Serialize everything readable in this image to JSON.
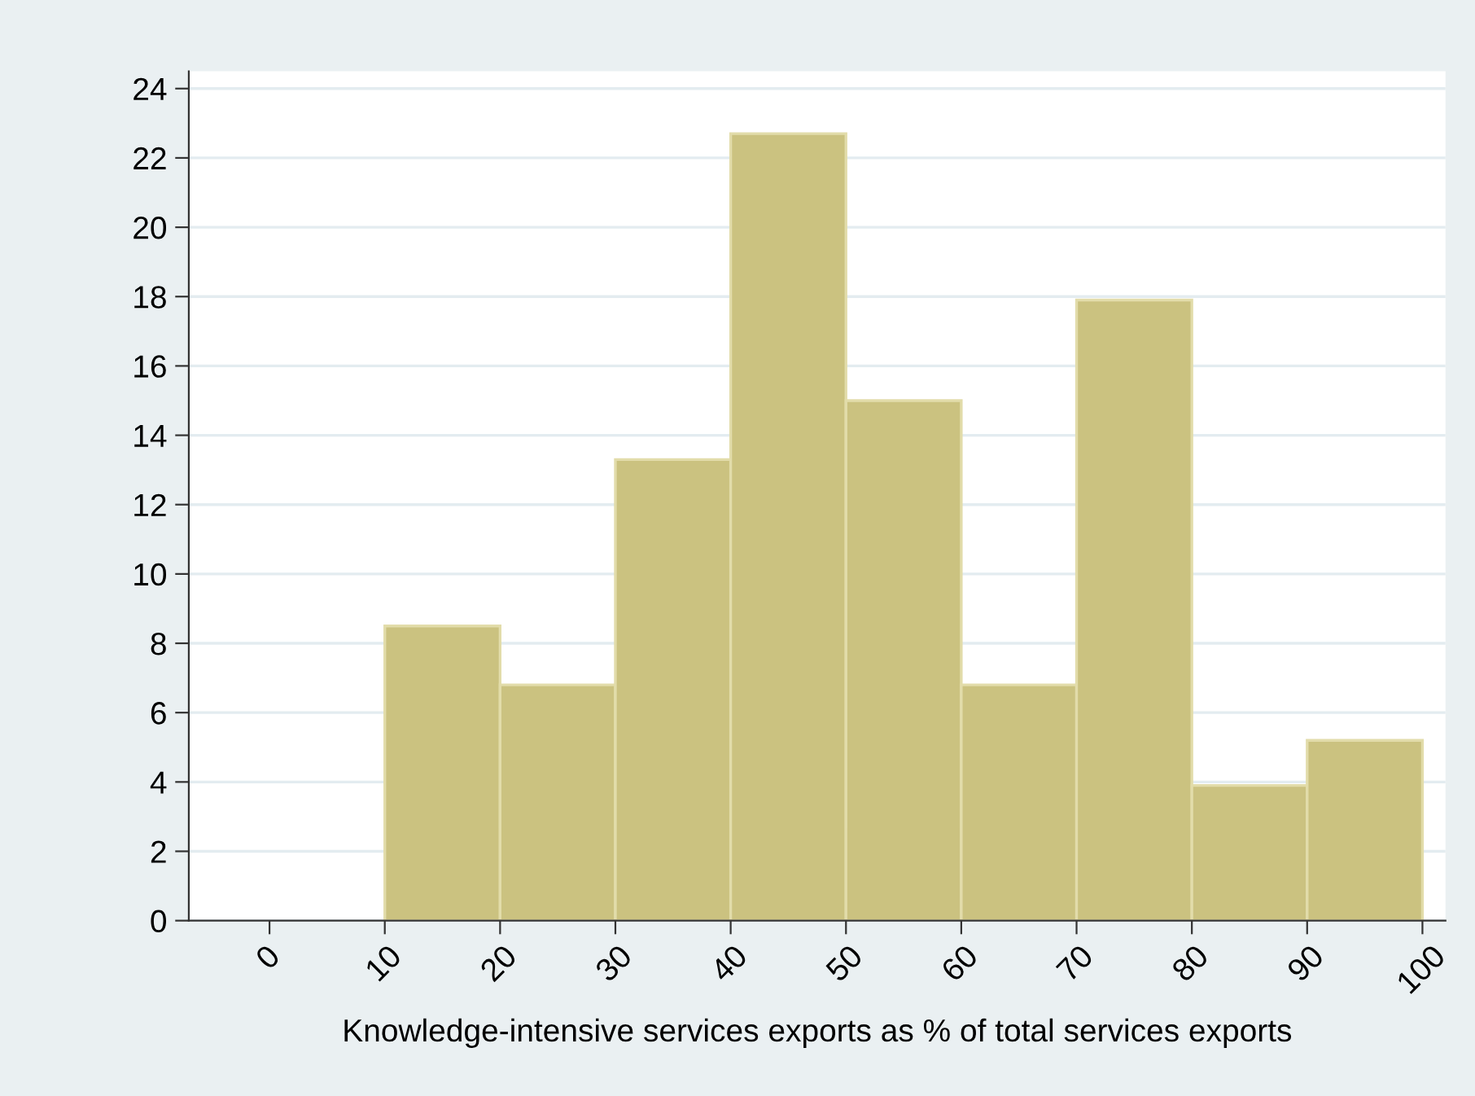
{
  "chart_data": {
    "type": "histogram",
    "xlabel": "Knowledge-intensive services exports as % of total services exports",
    "bins": [
      0,
      10,
      20,
      30,
      40,
      50,
      60,
      70,
      80,
      90,
      100
    ],
    "values": [
      0,
      8.5,
      6.8,
      13.3,
      22.7,
      15.0,
      6.8,
      17.9,
      3.9,
      5.2
    ],
    "color": "#cbc280",
    "xlim": [
      -7,
      102
    ],
    "ylim": [
      0,
      24.5
    ],
    "xticks": [
      0,
      10,
      20,
      30,
      40,
      50,
      60,
      70,
      80,
      90,
      100
    ],
    "yticks": [
      0,
      2,
      4,
      6,
      8,
      10,
      12,
      14,
      16,
      18,
      20,
      22,
      24
    ],
    "grid": "y"
  }
}
